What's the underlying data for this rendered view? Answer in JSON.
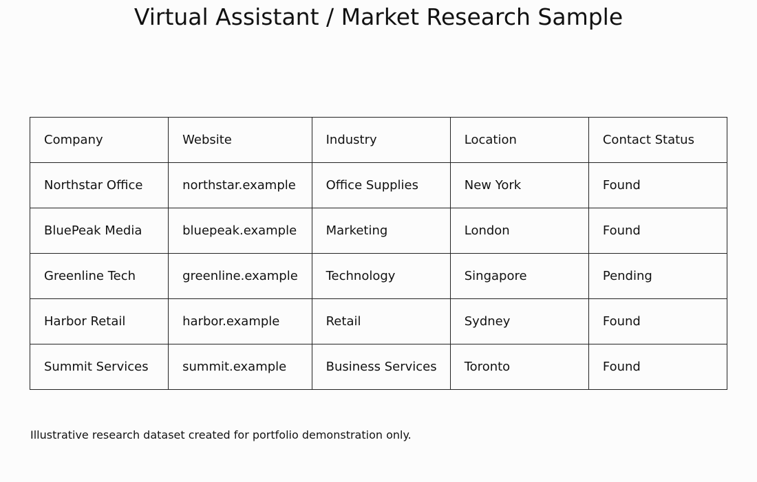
{
  "header": {
    "title": "Virtual Assistant / Market Research Sample"
  },
  "table": {
    "rows": [
      [
        "Company",
        "Website",
        "Industry",
        "Location",
        "Contact Status"
      ],
      [
        "Northstar Office",
        "northstar.example",
        "Office Supplies",
        "New York",
        "Found"
      ],
      [
        "BluePeak Media",
        "bluepeak.example",
        "Marketing",
        "London",
        "Found"
      ],
      [
        "Greenline Tech",
        "greenline.example",
        "Technology",
        "Singapore",
        "Pending"
      ],
      [
        "Harbor Retail",
        "harbor.example",
        "Retail",
        "Sydney",
        "Found"
      ],
      [
        "Summit Services",
        "summit.example",
        "Business Services",
        "Toronto",
        "Found"
      ]
    ]
  },
  "footer": {
    "note": "Illustrative research dataset created for portfolio demonstration only."
  }
}
